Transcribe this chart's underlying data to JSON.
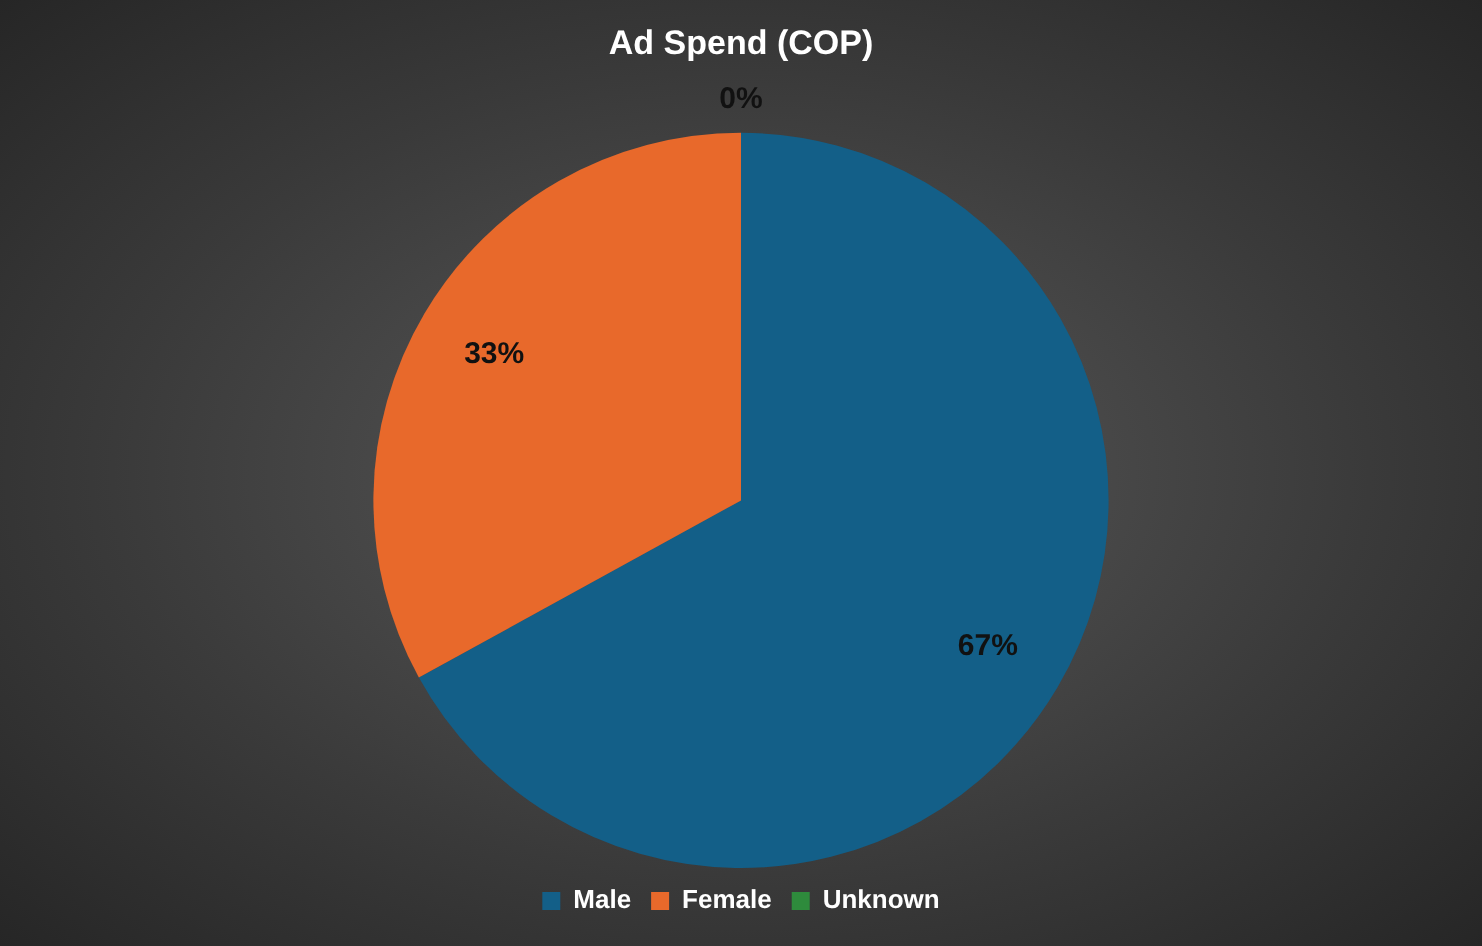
{
  "chart_data": {
    "type": "pie",
    "title": "Ad Spend (COP)",
    "categories": [
      "Male",
      "Female",
      "Unknown"
    ],
    "values": [
      67,
      33,
      0
    ],
    "colors": [
      "#135f88",
      "#e8692b",
      "#2e8b3c"
    ],
    "value_labels": [
      "67%",
      "33%",
      "0%"
    ],
    "legend": "bottom"
  }
}
